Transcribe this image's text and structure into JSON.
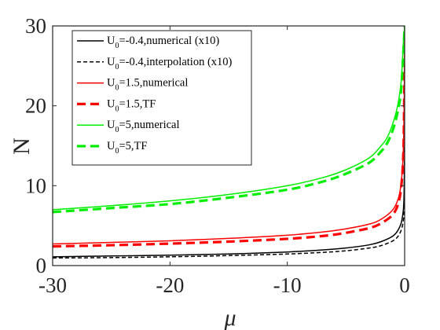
{
  "chart_data": {
    "type": "line",
    "xlabel": "μ",
    "ylabel": "N",
    "xlim": [
      -30,
      0
    ],
    "ylim": [
      0,
      30
    ],
    "xticks": [
      -30,
      -20,
      -10,
      0
    ],
    "yticks": [
      0,
      10,
      20,
      30
    ],
    "xtick_labels": [
      "-30",
      "-20",
      "-10",
      "0"
    ],
    "ytick_labels": [
      "0",
      "10",
      "20",
      "30"
    ],
    "grid": false,
    "legend_position": "top-left",
    "series": [
      {
        "name": "U0=-0.4,numerical (x10)",
        "legend_main": "U",
        "legend_sub": "0",
        "legend_rest": "=-0.4,numerical (x10)",
        "color": "#000000",
        "dash": "solid",
        "width": 1.5,
        "x": [
          -30,
          -25,
          -20,
          -15,
          -10,
          -7,
          -5,
          -3,
          -2,
          -1,
          -0.5,
          -0.2,
          -0.05,
          0
        ],
        "y": [
          1.1,
          1.2,
          1.3,
          1.45,
          1.7,
          1.95,
          2.2,
          2.6,
          3.0,
          3.7,
          4.6,
          6.0,
          9.0,
          19.0
        ]
      },
      {
        "name": "U0=-0.4,interpolation (x10)",
        "legend_main": "U",
        "legend_sub": "0",
        "legend_rest": "=-0.4,interpolation (x10)",
        "color": "#000000",
        "dash": "dashed",
        "width": 1.5,
        "x": [
          -30,
          -25,
          -20,
          -15,
          -10,
          -7,
          -5,
          -3,
          -2,
          -1,
          -0.5,
          -0.2,
          -0.05,
          0
        ],
        "y": [
          0.95,
          1.0,
          1.1,
          1.25,
          1.45,
          1.65,
          1.85,
          2.2,
          2.5,
          3.1,
          3.8,
          4.9,
          6.5,
          8.0
        ]
      },
      {
        "name": "U0=1.5,numerical",
        "legend_main": "U",
        "legend_sub": "0",
        "legend_rest": "=1.5,numerical",
        "color": "#ff0000",
        "dash": "solid",
        "width": 1.5,
        "x": [
          -30,
          -25,
          -20,
          -15,
          -10,
          -7,
          -5,
          -3,
          -2,
          -1,
          -0.5,
          -0.25,
          -0.1,
          -0.03,
          0
        ],
        "y": [
          2.7,
          2.9,
          3.1,
          3.4,
          3.8,
          4.2,
          4.6,
          5.2,
          5.8,
          7.0,
          8.6,
          11.0,
          15.0,
          22.0,
          30.0
        ]
      },
      {
        "name": "U0=1.5,TF",
        "legend_main": "U",
        "legend_sub": "0",
        "legend_rest": "=1.5,TF",
        "color": "#ff0000",
        "dash": "dashed",
        "width": 3.2,
        "x": [
          -30,
          -25,
          -20,
          -15,
          -10,
          -7,
          -5,
          -3,
          -2,
          -1,
          -0.5,
          -0.25,
          -0.1,
          -0.03,
          0
        ],
        "y": [
          2.4,
          2.55,
          2.75,
          3.0,
          3.35,
          3.7,
          4.1,
          4.7,
          5.3,
          6.4,
          8.0,
          10.5,
          14.5,
          22.0,
          30.0
        ]
      },
      {
        "name": "U0=5,numerical",
        "legend_main": "U",
        "legend_sub": "0",
        "legend_rest": "=5,numerical",
        "color": "#00ee00",
        "dash": "solid",
        "width": 1.5,
        "x": [
          -30,
          -25,
          -20,
          -15,
          -10,
          -7,
          -5,
          -3,
          -2,
          -1.5,
          -1,
          -0.6,
          -0.3,
          -0.1,
          0
        ],
        "y": [
          7.0,
          7.5,
          8.1,
          8.9,
          10.0,
          11.0,
          12.0,
          13.5,
          15.0,
          16.0,
          17.8,
          20.0,
          23.0,
          28.0,
          30.0
        ]
      },
      {
        "name": "U0=5,TF",
        "legend_main": "U",
        "legend_sub": "0",
        "legend_rest": "=5,TF",
        "color": "#00ee00",
        "dash": "dashed",
        "width": 3.2,
        "x": [
          -30,
          -25,
          -20,
          -15,
          -10,
          -7,
          -5,
          -3,
          -2,
          -1.5,
          -1,
          -0.6,
          -0.3,
          -0.1,
          0
        ],
        "y": [
          6.7,
          7.2,
          7.7,
          8.5,
          9.5,
          10.5,
          11.5,
          12.9,
          14.3,
          15.3,
          17.0,
          19.2,
          22.0,
          27.0,
          30.0
        ]
      }
    ]
  }
}
